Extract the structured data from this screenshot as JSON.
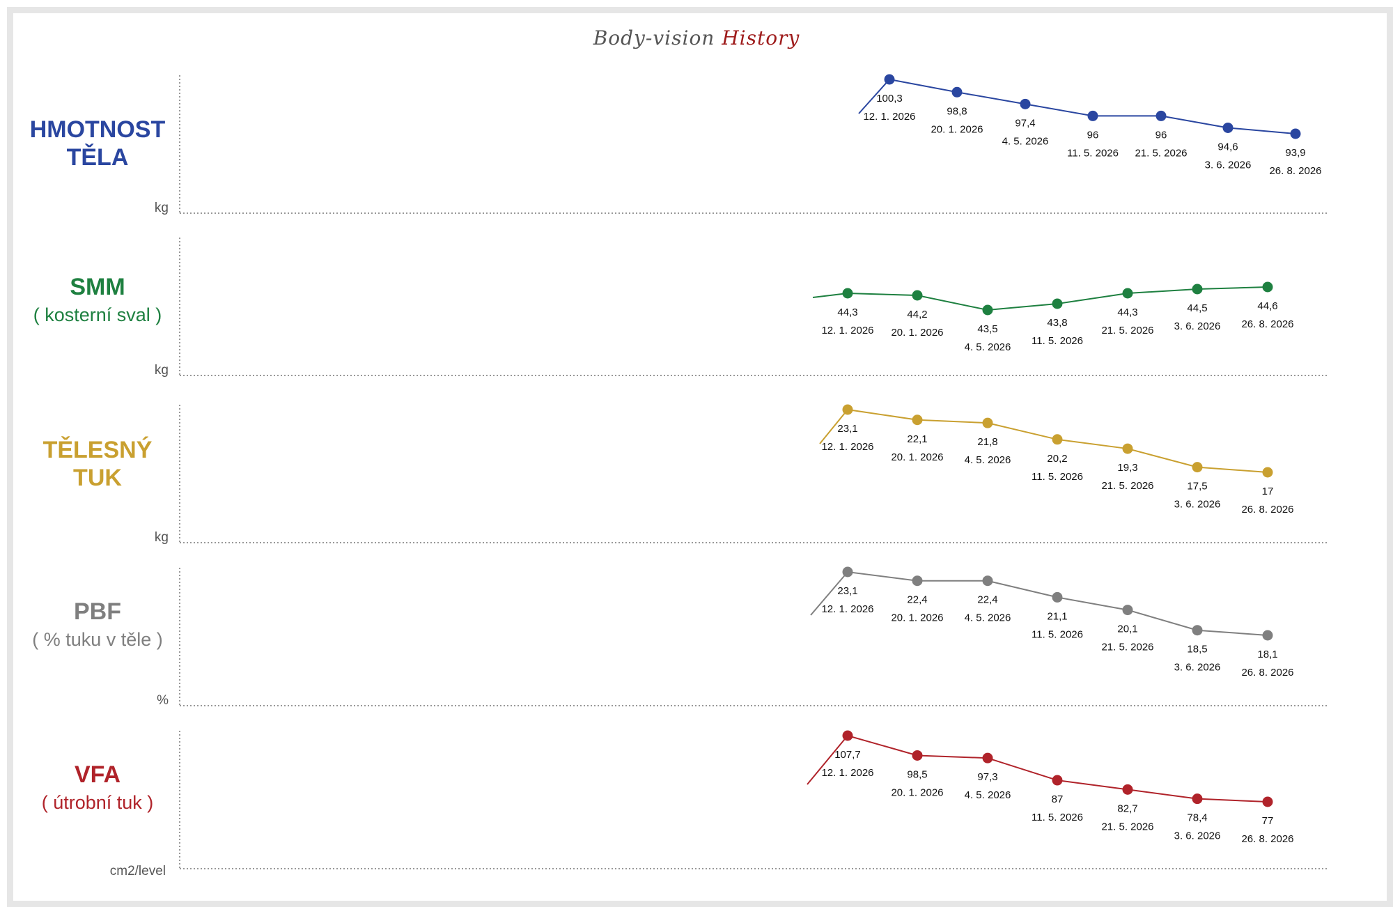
{
  "header": {
    "title_part1": "Body-vision",
    "title_part2": "History"
  },
  "colors": {
    "weight": "#2a46a0",
    "smm": "#1e8040",
    "fat": "#c9a030",
    "pbf": "#7f7f7f",
    "vfa": "#b0232a"
  },
  "chart_data": [
    {
      "type": "line",
      "name": "weight",
      "title_line1": "HMOTNOST",
      "title_line2": "TĚLA",
      "unit": "kg",
      "x": [
        "12. 1. 2026",
        "20. 1. 2026",
        "4. 5. 2026",
        "11. 5. 2026",
        "21. 5. 2026",
        "3. 6. 2026",
        "26. 8. 2026"
      ],
      "values": [
        100.3,
        98.8,
        97.4,
        96,
        96,
        94.6,
        93.9
      ],
      "labels": [
        "100,3",
        "98,8",
        "97,4",
        "96",
        "96",
        "94,6",
        "93,9"
      ]
    },
    {
      "type": "line",
      "name": "smm",
      "title_line1": "SMM",
      "title_line2": "( kosterní sval )",
      "unit": "kg",
      "x": [
        "12. 1. 2026",
        "20. 1. 2026",
        "4. 5. 2026",
        "11. 5. 2026",
        "21. 5. 2026",
        "3. 6. 2026",
        "26. 8. 2026"
      ],
      "values": [
        44.3,
        44.2,
        43.5,
        43.8,
        44.3,
        44.5,
        44.6
      ],
      "labels": [
        "44,3",
        "44,2",
        "43,5",
        "43,8",
        "44,3",
        "44,5",
        "44,6"
      ]
    },
    {
      "type": "line",
      "name": "fat",
      "title_line1": "TĚLESNÝ",
      "title_line2": "TUK",
      "unit": "kg",
      "x": [
        "12. 1. 2026",
        "20. 1. 2026",
        "4. 5. 2026",
        "11. 5. 2026",
        "21. 5. 2026",
        "3. 6. 2026",
        "26. 8. 2026"
      ],
      "values": [
        23.1,
        22.1,
        21.8,
        20.2,
        19.3,
        17.5,
        17
      ],
      "labels": [
        "23,1",
        "22,1",
        "21,8",
        "20,2",
        "19,3",
        "17,5",
        "17"
      ]
    },
    {
      "type": "line",
      "name": "pbf",
      "title_line1": "PBF",
      "title_line2": "( % tuku v těle )",
      "unit": "%",
      "x": [
        "12. 1. 2026",
        "20. 1. 2026",
        "4. 5. 2026",
        "11. 5. 2026",
        "21. 5. 2026",
        "3. 6. 2026",
        "26. 8. 2026"
      ],
      "values": [
        23.1,
        22.4,
        22.4,
        21.1,
        20.1,
        18.5,
        18.1
      ],
      "labels": [
        "23,1",
        "22,4",
        "22,4",
        "21,1",
        "20,1",
        "18,5",
        "18,1"
      ]
    },
    {
      "type": "line",
      "name": "vfa",
      "title_line1": "VFA",
      "title_line2": "( útrobní tuk )",
      "unit": "cm2/level",
      "x": [
        "12. 1. 2026",
        "20. 1. 2026",
        "4. 5. 2026",
        "11. 5. 2026",
        "21. 5. 2026",
        "3. 6. 2026",
        "26. 8. 2026"
      ],
      "values": [
        107.7,
        98.5,
        97.3,
        87,
        82.7,
        78.4,
        77
      ],
      "labels": [
        "107,7",
        "98,5",
        "97,3",
        "87",
        "82,7",
        "78,4",
        "77"
      ]
    }
  ]
}
